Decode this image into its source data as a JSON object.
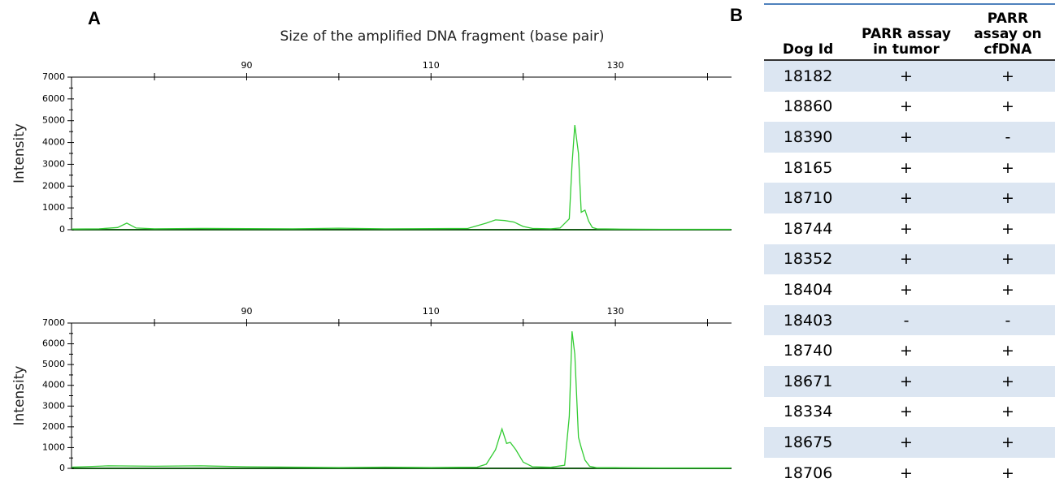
{
  "panel_labels": [
    "A",
    "B"
  ],
  "chart_data": [
    {
      "type": "line",
      "xlabel": "Size of the amplified DNA fragment (base pair)",
      "ylabel": "Intensity",
      "xlim": [
        71,
        142.6
      ],
      "ylim": [
        0,
        7000
      ],
      "xticks": [
        90,
        110,
        130
      ],
      "xminor": [
        80,
        100,
        120,
        140
      ],
      "yticks": [
        0,
        1000,
        2000,
        3000,
        4000,
        5000,
        6000,
        7000
      ],
      "series": [
        {
          "color": "#33cc33",
          "x": [
            71,
            74,
            76,
            77,
            78,
            80,
            85,
            90,
            95,
            100,
            105,
            110,
            114,
            116,
            117,
            118,
            119,
            120,
            121,
            123,
            124,
            125,
            125.3,
            125.6,
            126,
            126.3,
            126.7,
            127.1,
            127.5,
            128,
            130,
            135,
            142.5
          ],
          "values": [
            30,
            40,
            100,
            300,
            80,
            40,
            60,
            50,
            40,
            70,
            40,
            50,
            60,
            300,
            450,
            420,
            350,
            150,
            60,
            40,
            80,
            500,
            3000,
            4800,
            3500,
            800,
            900,
            400,
            100,
            40,
            30,
            20,
            20
          ]
        }
      ]
    },
    {
      "type": "line",
      "ylabel": "Intensity",
      "xlim": [
        71,
        142.6
      ],
      "ylim": [
        0,
        7000
      ],
      "xticks": [
        90,
        110,
        130
      ],
      "xminor": [
        80,
        100,
        120,
        140
      ],
      "yticks": [
        0,
        1000,
        2000,
        3000,
        4000,
        5000,
        6000,
        7000
      ],
      "series": [
        {
          "color": "#33cc33",
          "x": [
            71,
            75,
            80,
            85,
            90,
            95,
            100,
            105,
            110,
            113,
            115,
            116,
            117,
            117.7,
            118.2,
            118.6,
            119.2,
            120,
            121,
            123,
            124.5,
            125,
            125.3,
            125.6,
            126,
            126.3,
            126.7,
            127.2,
            128,
            130,
            135,
            142.5
          ],
          "values": [
            60,
            120,
            100,
            120,
            80,
            60,
            40,
            60,
            40,
            50,
            60,
            200,
            900,
            1900,
            1200,
            1250,
            900,
            300,
            80,
            50,
            150,
            2500,
            6600,
            5500,
            1500,
            1000,
            400,
            100,
            30,
            30,
            20,
            20
          ]
        }
      ]
    }
  ],
  "table": {
    "header": [
      "Dog Id",
      "PARR assay in tumor",
      "PARR assay on cfDNA"
    ],
    "rows": [
      [
        "18182",
        "+",
        "+"
      ],
      [
        "18860",
        "+",
        "+"
      ],
      [
        "18390",
        "+",
        "-"
      ],
      [
        "18165",
        "+",
        "+"
      ],
      [
        "18710",
        "+",
        "+"
      ],
      [
        "18744",
        "+",
        "+"
      ],
      [
        "18352",
        "+",
        "+"
      ],
      [
        "18404",
        "+",
        "+"
      ],
      [
        "18403",
        "-",
        "-"
      ],
      [
        "18740",
        "+",
        "+"
      ],
      [
        "18671",
        "+",
        "+"
      ],
      [
        "18334",
        "+",
        "+"
      ],
      [
        "18675",
        "+",
        "+"
      ],
      [
        "18706",
        "+",
        "+"
      ]
    ]
  }
}
